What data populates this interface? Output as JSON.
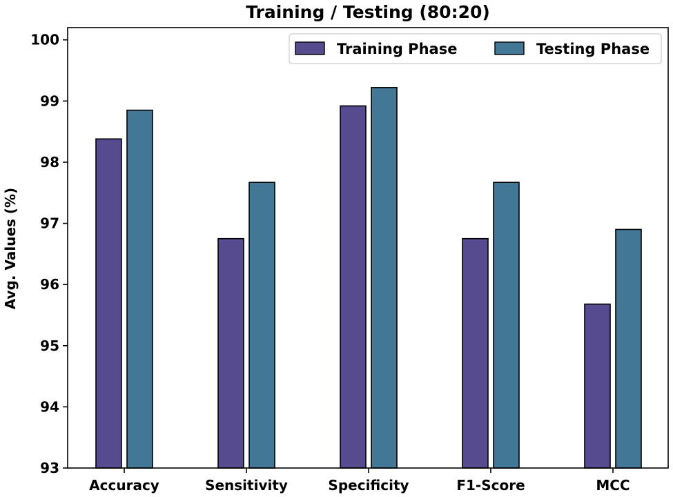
{
  "chart_data": {
    "type": "bar",
    "title": "Training / Testing (80:20)",
    "xlabel": "",
    "ylabel": "Avg. Values (%)",
    "categories": [
      "Accuracy",
      "Sensitivity",
      "Specificity",
      "F1-Score",
      "MCC"
    ],
    "series": [
      {
        "name": "Training Phase",
        "color": "#574b8f",
        "values": [
          98.38,
          96.75,
          98.92,
          96.75,
          95.68
        ]
      },
      {
        "name": "Testing Phase",
        "color": "#427896",
        "values": [
          98.85,
          97.67,
          99.22,
          97.67,
          96.9
        ]
      }
    ],
    "ylim": [
      93,
      100.2
    ],
    "yticks": [
      93,
      94,
      95,
      96,
      97,
      98,
      99,
      100
    ],
    "legend_position": "top-right",
    "grid": false
  }
}
